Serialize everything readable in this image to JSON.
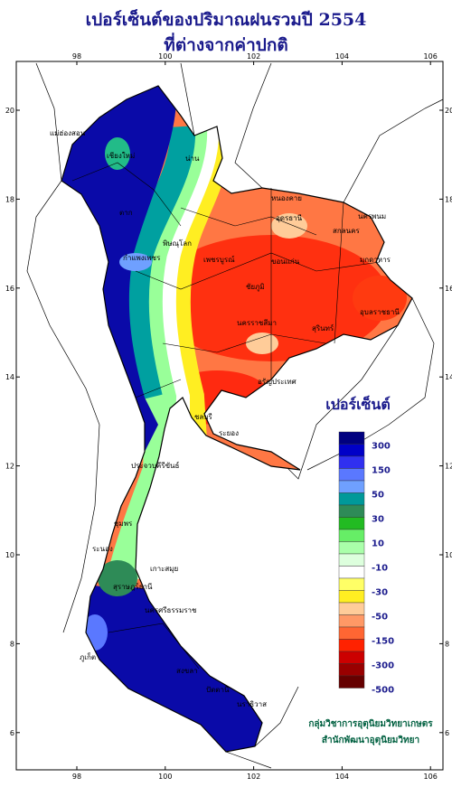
{
  "header": {
    "title": "เปอร์เซ็นต์ของปริมาณฝนรวมปี 2554",
    "subtitle": "ที่ต่างจากค่าปกติ"
  },
  "map_axes": {
    "lon_ticks": [
      98,
      100,
      102,
      104,
      106
    ],
    "lat_ticks": [
      20,
      18,
      16,
      14,
      12,
      10,
      8,
      6
    ]
  },
  "places": [
    "แม่ฮ่องสอน",
    "เชียงใหม่",
    "น่าน",
    "ตาก",
    "พิษณุโลก",
    "กำแพงเพชร",
    "เพชรบูรณ์",
    "หนองคาย",
    "อุดรธานี",
    "สกลนคร",
    "นครพนม",
    "ขอนแก่น",
    "มุกดาหาร",
    "ชัยภูมิ",
    "นครราชสีมา",
    "อุบลราชธานี",
    "สุรินทร์",
    "อรัญประเทศ",
    "ชลบุรี",
    "ระยอง",
    "ประจวบคีรีขันธ์",
    "ชุมพร",
    "ระนอง",
    "เกาะสมุย",
    "สุราษฎร์ธานี",
    "นครศรีธรรมราช",
    "ภูเก็ต",
    "สงขลา",
    "ปัตตานี",
    "นราธิวาส"
  ],
  "legend": {
    "title": "เปอร์เซ็นต์",
    "labels": [
      300,
      150,
      50,
      30,
      10,
      -10,
      -30,
      -50,
      -150,
      -300,
      -500
    ],
    "colors": [
      "#000080",
      "#0000c8",
      "#3030f0",
      "#5a78ff",
      "#6fa0ff",
      "#009999",
      "#2e8b57",
      "#22bb22",
      "#66ee66",
      "#aaffaa",
      "#ddffdd",
      "#ffffff",
      "#ffff66",
      "#ffee22",
      "#ffcc99",
      "#ff9966",
      "#ff6633",
      "#ff2200",
      "#cc0000",
      "#990000",
      "#660000"
    ]
  },
  "credit": {
    "line1": "กลุ่มวิชาการอุตุนิยมวิทยาเกษตร",
    "line2": "สำนักพัฒนาอุตุนิยมวิทยา"
  }
}
